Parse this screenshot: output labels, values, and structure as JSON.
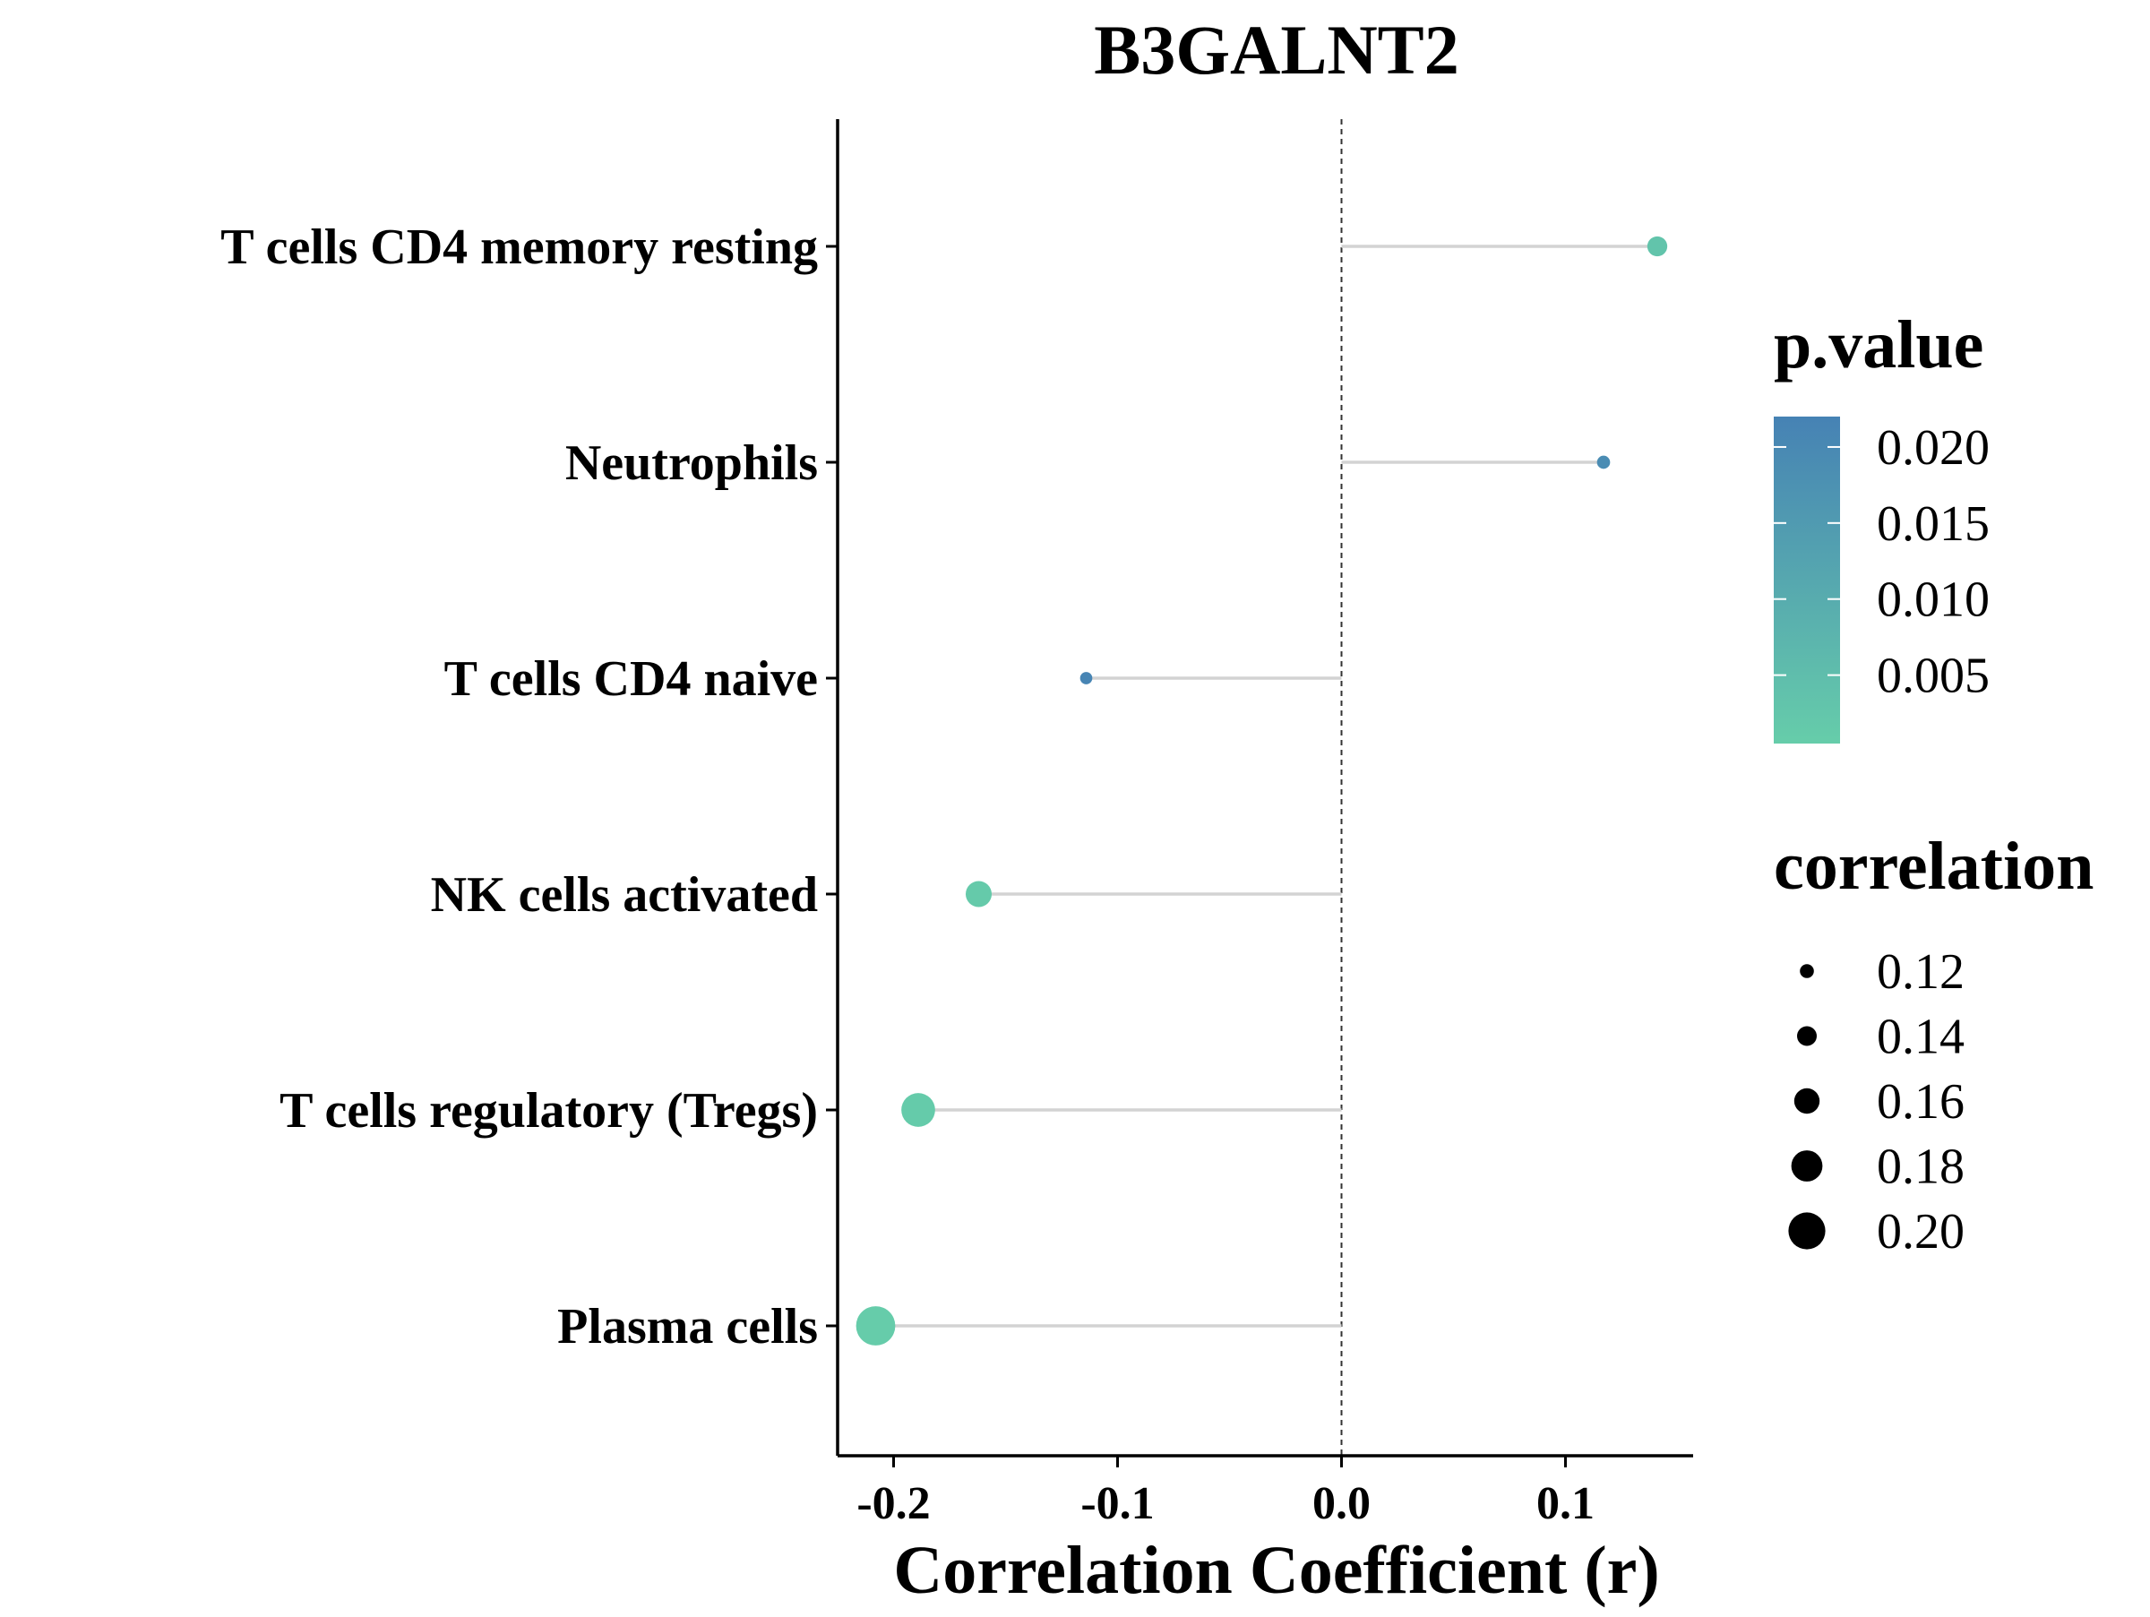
{
  "chart_data": {
    "type": "lollipop",
    "title": "B3GALNT2",
    "xlabel": "Correlation Coefficient (r)",
    "ylabel": "",
    "xlim": [
      -0.225,
      0.157
    ],
    "x_ticks": [
      "-0.2",
      "-0.1",
      "0.0",
      "0.1"
    ],
    "x_tick_values": [
      -0.2,
      -0.1,
      0.0,
      0.1
    ],
    "reference_line": 0.0,
    "categories": [
      "T cells CD4 memory resting",
      "Neutrophils",
      "T cells CD4 naive",
      "NK cells activated",
      "T cells regulatory (Tregs)",
      "Plasma cells"
    ],
    "values": [
      0.141,
      0.117,
      -0.114,
      -0.162,
      -0.189,
      -0.208
    ],
    "p_values": [
      0.003,
      0.019,
      0.021,
      0.0015,
      0.0012,
      0.0008
    ],
    "grid": false,
    "legend_position": "right",
    "legends": {
      "color": {
        "title": "p.value",
        "labels": [
          "0.020",
          "0.015",
          "0.010",
          "0.005"
        ],
        "label_values": [
          0.02,
          0.015,
          0.01,
          0.005
        ],
        "range": [
          0.0005,
          0.022
        ],
        "low_color": "#66cdaa",
        "high_color": "#4682b4"
      },
      "size": {
        "title": "correlation",
        "labels": [
          "0.12",
          "0.14",
          "0.16",
          "0.18",
          "0.20"
        ],
        "label_values": [
          0.12,
          0.14,
          0.16,
          0.18,
          0.2
        ]
      }
    },
    "colors": {
      "stem": "#d3d3d3",
      "axis": "#000000",
      "reference_line": "#333333"
    }
  }
}
